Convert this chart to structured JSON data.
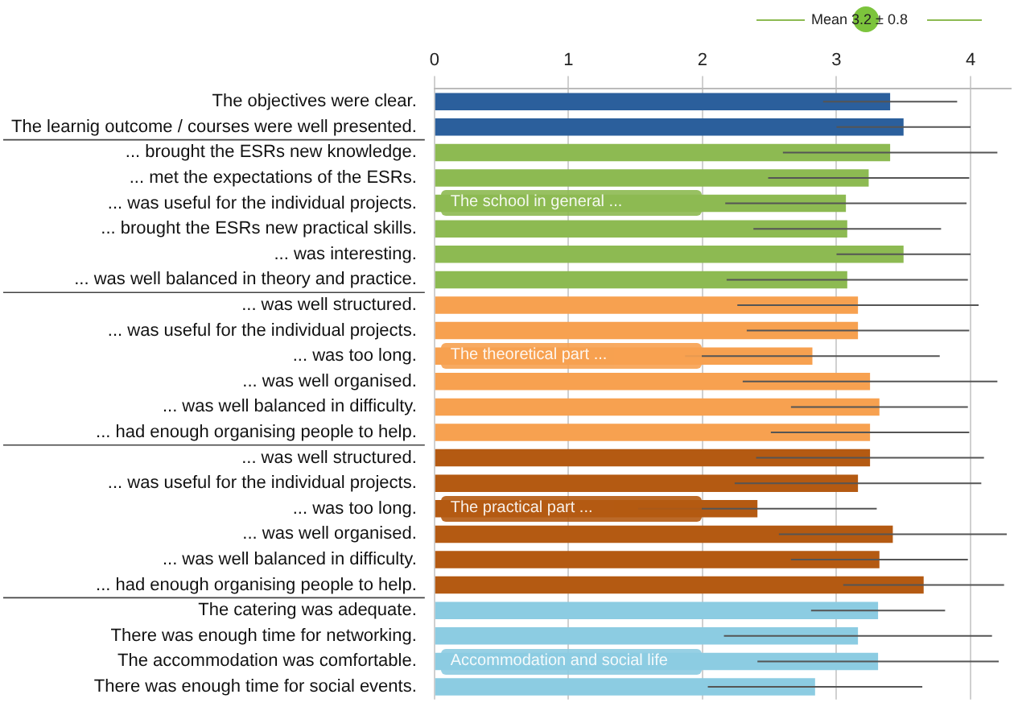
{
  "chart_data": {
    "type": "bar",
    "orientation": "horizontal",
    "categories": [
      "The objectives were clear.",
      "The learnig outcome / courses were well presented.",
      "... brought the ESRs new knowledge.",
      "... met the expectations of the ESRs.",
      "... was useful for the individual projects.",
      "... brought the ESRs new practical skills.",
      "... was interesting.",
      "... was well balanced in theory and practice.",
      "... was well structured.",
      "... was useful for the individual projects.",
      "... was too long.",
      "... was well organised.",
      "... was well balanced in difficulty.",
      "... had enough organising people to help.",
      "... was well structured.",
      "... was useful for the individual projects.",
      "... was too long.",
      "... was well organised.",
      "... was well balanced in difficulty.",
      "... had enough organising people to help.",
      "The catering was adequate.",
      "There was enough time for networking.",
      "The accommodation was comfortable.",
      "There was enough time for social events."
    ],
    "values": [
      3.4,
      3.5,
      3.4,
      3.24,
      3.07,
      3.08,
      3.5,
      3.08,
      3.16,
      3.16,
      2.82,
      3.25,
      3.32,
      3.25,
      3.25,
      3.16,
      2.41,
      3.42,
      3.32,
      3.65,
      3.31,
      3.16,
      3.31,
      2.84
    ],
    "errors": [
      0.5,
      0.5,
      0.8,
      0.75,
      0.9,
      0.7,
      0.5,
      0.9,
      0.9,
      0.83,
      0.95,
      0.95,
      0.66,
      0.74,
      0.85,
      0.92,
      0.89,
      0.85,
      0.66,
      0.6,
      0.5,
      1.0,
      0.9,
      0.8
    ],
    "colors": [
      "#2b5f9c",
      "#2b5f9c",
      "#8dba52",
      "#8dba52",
      "#8dba52",
      "#8dba52",
      "#8dba52",
      "#8dba52",
      "#f7a150",
      "#f7a150",
      "#f7a150",
      "#f7a150",
      "#f7a150",
      "#f7a150",
      "#b45a12",
      "#b45a12",
      "#b45a12",
      "#b45a12",
      "#b45a12",
      "#b45a12",
      "#8ccce2",
      "#8ccce2",
      "#8ccce2",
      "#8ccce2"
    ],
    "xlim": [
      0,
      4.3
    ],
    "xticks": [
      0,
      1,
      2,
      3,
      4
    ],
    "grid": "x",
    "legend": false,
    "annotations": [
      "Mean 3.2 ± 0.8",
      "The school in general ...",
      "The theoretical part ...",
      "The practical part ...",
      "Accommodation and social life"
    ]
  }
}
